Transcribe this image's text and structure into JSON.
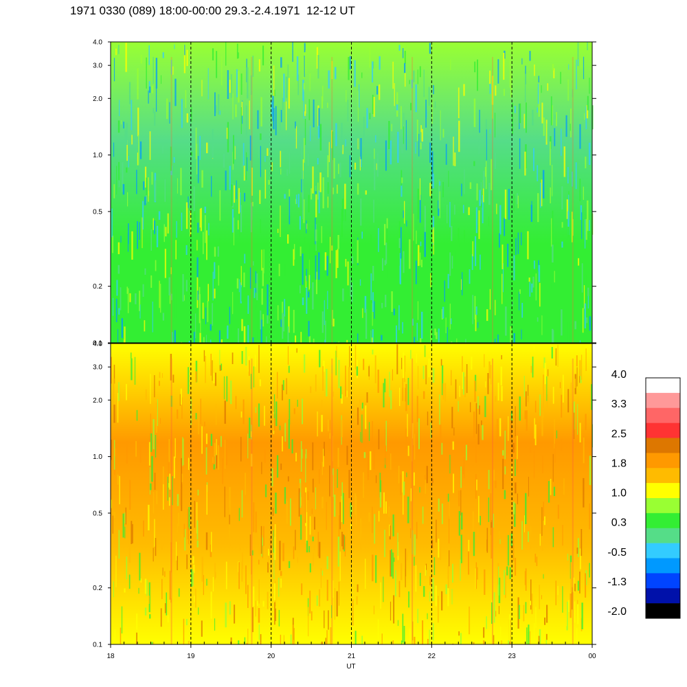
{
  "chart_data": {
    "type": "heatmap",
    "title": "1971 0330 (089) 18:00-00:00 29.3.-2.4.1971  12-12 UT",
    "xlabel": "UT",
    "x_ticks": [
      "18",
      "19",
      "20",
      "21",
      "22",
      "23",
      "00"
    ],
    "x_range": [
      18,
      24
    ],
    "dashed_gridlines_x": [
      19,
      20,
      21,
      22,
      23
    ],
    "panels": [
      {
        "name": "upper",
        "y_scale": "log",
        "y_range": [
          0.1,
          4.0
        ],
        "y_ticks": [
          "0.1",
          "0.2",
          "0.5",
          "1.0",
          "2.0",
          "3.0",
          "4.0"
        ],
        "y_tick_values": [
          0.1,
          0.2,
          0.5,
          1.0,
          2.0,
          3.0,
          4.0
        ],
        "dominant_colors_low_to_high_freq": [
          "#33ee33",
          "#33ee33",
          "#55dd88",
          "#99ff33"
        ]
      },
      {
        "name": "lower",
        "y_scale": "log",
        "y_range": [
          0.1,
          4.0
        ],
        "y_ticks": [
          "0.1",
          "0.2",
          "0.5",
          "1.0",
          "2.0",
          "3.0",
          "4.0"
        ],
        "y_tick_values": [
          0.1,
          0.2,
          0.5,
          1.0,
          2.0,
          3.0,
          4.0
        ],
        "dominant_colors_low_to_high_freq": [
          "#ffff00",
          "#ffbb00",
          "#ff9900",
          "#ffff00"
        ]
      }
    ],
    "colorbar": {
      "labels": [
        "4.0",
        "3.3",
        "2.5",
        "1.8",
        "1.0",
        "0.3",
        "-0.5",
        "-1.3",
        "-2.0"
      ],
      "colors_top_to_bottom": [
        "#ffffff",
        "#ff9999",
        "#ff6666",
        "#ff3333",
        "#dd7700",
        "#ff9900",
        "#ffbb00",
        "#ffff00",
        "#99ff33",
        "#33ee33",
        "#55dd88",
        "#33ccff",
        "#0099ff",
        "#0044ff",
        "#0011aa",
        "#000000"
      ]
    }
  }
}
